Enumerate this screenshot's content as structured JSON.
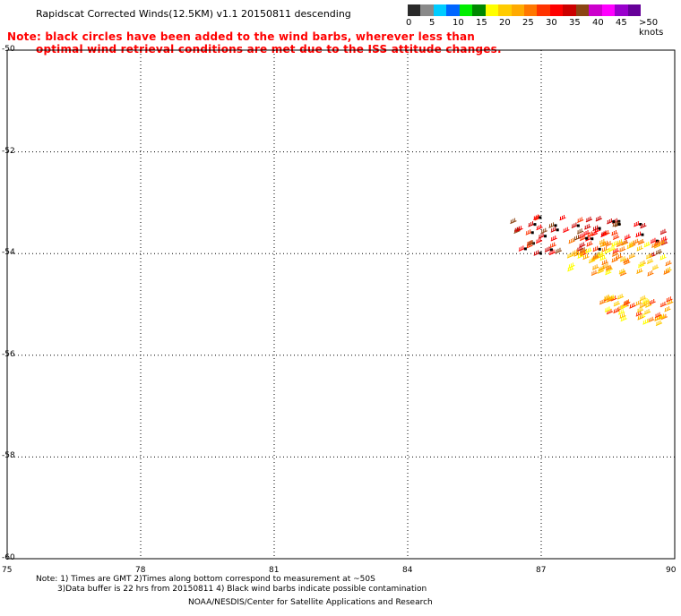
{
  "title": "Rapidscat Corrected Winds(12.5KM) v1.1 20150811 descending",
  "note_line1": "Note: black circles have been added to the wind barbs, wherever less than",
  "note_line2": "optimal wind retrieval conditions are met due to the ISS attitude changes.",
  "colorbar": {
    "labels": [
      "0",
      "5",
      "10",
      "15",
      "20",
      "25",
      "30",
      "35",
      "40",
      "45",
      ">50 knots"
    ],
    "colors": [
      "#2a2a2a",
      "#8a8a8a",
      "#00ccff",
      "#0066ff",
      "#00ee00",
      "#008800",
      "#ffff00",
      "#ffcc00",
      "#ffaa00",
      "#ff7700",
      "#ff3300",
      "#ff0000",
      "#cc0000",
      "#8b4513",
      "#cc00cc",
      "#ff00ff",
      "#9900cc",
      "#660099"
    ]
  },
  "map": {
    "x_ticks": [
      "75",
      "78",
      "81",
      "84",
      "87",
      "90"
    ],
    "y_ticks": [
      "-50",
      "-52",
      "-54",
      "-56",
      "-58",
      "-60"
    ],
    "lon_range": [
      75,
      90
    ],
    "lat_range": [
      -50,
      -60
    ]
  },
  "footnote_line1": "Note: 1) Times are GMT 2)Times along bottom correspond to measurement at ~50S",
  "footnote_line2": "3)Data buffer is 22 hrs from 20150811 4) Black wind barbs indicate possible contamination",
  "credit": "NOAA/NESDIS/Center for Satellite Applications and Research"
}
